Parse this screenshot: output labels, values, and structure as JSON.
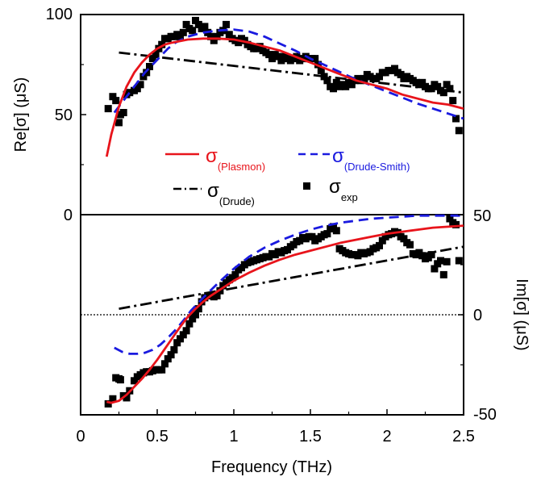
{
  "chart_data": [
    {
      "type": "line",
      "panel": "top",
      "ylabel": "Re[σ]  (μS)",
      "xlim": [
        0,
        2.5
      ],
      "ylim": [
        0,
        100
      ],
      "y_ticks": [
        "0",
        "50",
        "100"
      ],
      "series": [
        {
          "name": "σ(Plasmon)",
          "color": "#e8141b",
          "style": "solid",
          "x": [
            0.17,
            0.2,
            0.25,
            0.3,
            0.35,
            0.4,
            0.45,
            0.5,
            0.55,
            0.6,
            0.7,
            0.8,
            0.9,
            1.0,
            1.1,
            1.2,
            1.3,
            1.4,
            1.5,
            1.6,
            1.7,
            1.8,
            1.9,
            2.0,
            2.1,
            2.2,
            2.3,
            2.4,
            2.5
          ],
          "y": [
            29,
            40,
            54,
            64,
            71,
            76,
            80,
            83,
            85,
            86,
            87.5,
            88,
            88,
            87.5,
            86,
            84,
            82,
            79,
            76,
            73,
            70,
            67,
            65,
            63,
            60,
            58,
            56,
            55,
            53
          ]
        },
        {
          "name": "σ(Drude-Smith)",
          "color": "#1a1adf",
          "style": "dashed",
          "x": [
            0.22,
            0.27,
            0.32,
            0.37,
            0.42,
            0.47,
            0.52,
            0.57,
            0.62,
            0.7,
            0.8,
            0.9,
            1.0,
            1.1,
            1.2,
            1.3,
            1.4,
            1.5,
            1.6,
            1.7,
            1.8,
            1.9,
            2.0,
            2.1,
            2.2,
            2.3,
            2.4,
            2.5
          ],
          "y": [
            51,
            56,
            61,
            66,
            71,
            75,
            79,
            83,
            86,
            89,
            91,
            92,
            92.5,
            91.5,
            89,
            85.5,
            82,
            78,
            74.5,
            71,
            67.5,
            64.5,
            61.5,
            58.5,
            55.5,
            53,
            50.5,
            48
          ]
        },
        {
          "name": "σ(Drude)",
          "color": "#000000",
          "style": "dashdot",
          "x": [
            0.25,
            2.5
          ],
          "y": [
            81,
            61
          ]
        },
        {
          "name": "σexp",
          "color": "#000000",
          "style": "markers",
          "x": [
            0.18,
            0.21,
            0.23,
            0.25,
            0.26,
            0.28,
            0.3,
            0.32,
            0.35,
            0.37,
            0.39,
            0.41,
            0.43,
            0.45,
            0.47,
            0.49,
            0.51,
            0.53,
            0.55,
            0.57,
            0.59,
            0.61,
            0.63,
            0.65,
            0.67,
            0.69,
            0.71,
            0.73,
            0.75,
            0.77,
            0.79,
            0.81,
            0.83,
            0.85,
            0.87,
            0.89,
            0.91,
            0.93,
            0.95,
            0.97,
            0.99,
            1.01,
            1.03,
            1.05,
            1.07,
            1.09,
            1.11,
            1.13,
            1.15,
            1.17,
            1.19,
            1.21,
            1.23,
            1.25,
            1.27,
            1.29,
            1.31,
            1.33,
            1.35,
            1.37,
            1.39,
            1.41,
            1.43,
            1.45,
            1.47,
            1.49,
            1.51,
            1.53,
            1.55,
            1.57,
            1.59,
            1.61,
            1.63,
            1.65,
            1.67,
            1.69,
            1.71,
            1.73,
            1.75,
            1.77,
            1.79,
            1.81,
            1.83,
            1.85,
            1.87,
            1.89,
            1.91,
            1.93,
            1.95,
            1.97,
            1.99,
            2.01,
            2.03,
            2.05,
            2.07,
            2.09,
            2.11,
            2.13,
            2.15,
            2.17,
            2.19,
            2.21,
            2.23,
            2.25,
            2.27,
            2.29,
            2.31,
            2.33,
            2.35,
            2.37,
            2.39,
            2.41,
            2.43,
            2.45,
            2.47
          ],
          "y": [
            53,
            59,
            57,
            46,
            50,
            51,
            60,
            61,
            62,
            63,
            65,
            69,
            71,
            74,
            78,
            80,
            83,
            85,
            88,
            88,
            89,
            89,
            90,
            89,
            91,
            95,
            93,
            92,
            97,
            95,
            93,
            94,
            91,
            89,
            87,
            89,
            91,
            92,
            95,
            90,
            88,
            87,
            86,
            88,
            87,
            85,
            84,
            83,
            83,
            84,
            82,
            81,
            80,
            78,
            80,
            79,
            77,
            79,
            78,
            77,
            78,
            79,
            77,
            78,
            79,
            78,
            78,
            78,
            75,
            72,
            69,
            67,
            64,
            63,
            66,
            64,
            65,
            64,
            66,
            65,
            67,
            68,
            67,
            68,
            70,
            69,
            68,
            68,
            69,
            71,
            71,
            72,
            72,
            73,
            71,
            70,
            68,
            69,
            68,
            67,
            66,
            65,
            66,
            64,
            63,
            63,
            65,
            64,
            62,
            61,
            65,
            63,
            57,
            48,
            42
          ]
        }
      ]
    },
    {
      "type": "line",
      "panel": "bottom",
      "xlabel": "Frequency (THz)",
      "ylabel": "Im[σ]  (μS)",
      "xlim": [
        0,
        2.5
      ],
      "ylim": [
        -50,
        50
      ],
      "x_ticks": [
        "0",
        "0.5",
        "1",
        "1.5",
        "2",
        "2.5"
      ],
      "y_ticks": [
        "-50",
        "0",
        "50"
      ],
      "zero_line": "dotted",
      "series": [
        {
          "name": "σ(Plasmon)",
          "color": "#e8141b",
          "style": "solid",
          "x": [
            0.17,
            0.2,
            0.25,
            0.3,
            0.35,
            0.4,
            0.45,
            0.5,
            0.55,
            0.6,
            0.65,
            0.7,
            0.75,
            0.8,
            0.85,
            0.9,
            0.95,
            1.0,
            1.1,
            1.2,
            1.3,
            1.4,
            1.5,
            1.6,
            1.7,
            1.8,
            1.9,
            2.0,
            2.1,
            2.2,
            2.3,
            2.4,
            2.5
          ],
          "y": [
            -43.5,
            -44,
            -43,
            -40,
            -36,
            -32,
            -27.5,
            -22.5,
            -17,
            -11.5,
            -6,
            -1,
            3,
            6.5,
            9.5,
            12,
            14.5,
            17,
            21,
            24.5,
            27.5,
            30,
            32,
            34,
            36,
            37.5,
            39,
            40.5,
            41.5,
            42.5,
            43.5,
            44,
            44.5
          ]
        },
        {
          "name": "σ(Drude-Smith)",
          "color": "#1a1adf",
          "style": "dashed",
          "x": [
            0.22,
            0.27,
            0.32,
            0.37,
            0.42,
            0.47,
            0.52,
            0.57,
            0.62,
            0.67,
            0.72,
            0.8,
            0.9,
            1.0,
            1.1,
            1.2,
            1.3,
            1.4,
            1.5,
            1.6,
            1.7,
            1.8,
            1.9,
            2.0,
            2.1,
            2.2,
            2.3,
            2.4,
            2.5
          ],
          "y": [
            -16.5,
            -18.5,
            -19.5,
            -19.5,
            -19,
            -17.5,
            -15,
            -11.5,
            -7.5,
            -3,
            2,
            8.5,
            16,
            23,
            29,
            33.5,
            37,
            40,
            42.5,
            44.5,
            46,
            47,
            48,
            48.5,
            49,
            49.5,
            49.5,
            49.5,
            49.5
          ]
        },
        {
          "name": "σ(Drude)",
          "color": "#000000",
          "style": "dashdot",
          "x": [
            0.25,
            2.5
          ],
          "y": [
            3,
            34
          ]
        },
        {
          "name": "σexp",
          "color": "#000000",
          "style": "markers",
          "x": [
            0.18,
            0.21,
            0.23,
            0.25,
            0.26,
            0.28,
            0.3,
            0.32,
            0.35,
            0.37,
            0.39,
            0.41,
            0.43,
            0.45,
            0.47,
            0.49,
            0.51,
            0.53,
            0.55,
            0.57,
            0.59,
            0.61,
            0.63,
            0.65,
            0.67,
            0.69,
            0.71,
            0.73,
            0.75,
            0.77,
            0.79,
            0.81,
            0.83,
            0.85,
            0.87,
            0.89,
            0.91,
            0.93,
            0.95,
            0.97,
            0.99,
            1.01,
            1.03,
            1.05,
            1.07,
            1.09,
            1.11,
            1.13,
            1.15,
            1.17,
            1.19,
            1.21,
            1.23,
            1.25,
            1.27,
            1.29,
            1.31,
            1.33,
            1.35,
            1.37,
            1.39,
            1.41,
            1.43,
            1.45,
            1.47,
            1.49,
            1.51,
            1.53,
            1.55,
            1.57,
            1.59,
            1.61,
            1.63,
            1.65,
            1.67,
            1.69,
            1.71,
            1.73,
            1.75,
            1.77,
            1.79,
            1.81,
            1.83,
            1.85,
            1.87,
            1.89,
            1.91,
            1.93,
            1.95,
            1.97,
            1.99,
            2.01,
            2.03,
            2.05,
            2.07,
            2.09,
            2.11,
            2.13,
            2.15,
            2.17,
            2.19,
            2.21,
            2.23,
            2.25,
            2.27,
            2.29,
            2.31,
            2.33,
            2.35,
            2.37,
            2.39,
            2.41,
            2.43,
            2.45,
            2.47
          ],
          "y": [
            -44.5,
            -42,
            -31.5,
            -32,
            -32.5,
            -40.5,
            -41.5,
            -38,
            -33,
            -31,
            -30,
            -29,
            -28.5,
            -28.5,
            -28,
            -27.5,
            -27.5,
            -27.5,
            -24.5,
            -22,
            -20,
            -17.5,
            -14,
            -12,
            -10,
            -8,
            -4.5,
            -2,
            0,
            3,
            6.5,
            8.5,
            9.5,
            9.5,
            9,
            9.5,
            12,
            14.5,
            16,
            17.5,
            18.5,
            20,
            22.5,
            23.5,
            25,
            26,
            26.5,
            27,
            27.5,
            28,
            28.5,
            29,
            29,
            30.5,
            30,
            31.5,
            31,
            32,
            32.5,
            34,
            35,
            36.5,
            37,
            38.5,
            38,
            39,
            39,
            37,
            38,
            39,
            40,
            40.5,
            43,
            44,
            42,
            33,
            32,
            31,
            30.5,
            30,
            30,
            29.5,
            31,
            30.5,
            31,
            31.5,
            33,
            33.5,
            34.5,
            37,
            39,
            40,
            40.5,
            41.5,
            41,
            39,
            38,
            36,
            35,
            30.5,
            30,
            31,
            29.5,
            28,
            28.5,
            30,
            23,
            25.5,
            27,
            20,
            26.5,
            48,
            46,
            45,
            27
          ]
        }
      ]
    }
  ],
  "legend": {
    "items": [
      {
        "symbol": "σ",
        "subscript": "(Plasmon)",
        "color": "#e8141b",
        "style": "solid"
      },
      {
        "symbol": "σ",
        "subscript": "(Drude-Smith)",
        "color": "#1a1adf",
        "style": "dashed"
      },
      {
        "symbol": "σ",
        "subscript": "(Drude)",
        "color": "#000000",
        "style": "dashdot"
      },
      {
        "symbol": "σ",
        "subscript": "exp",
        "color": "#000000",
        "style": "markers"
      }
    ]
  }
}
